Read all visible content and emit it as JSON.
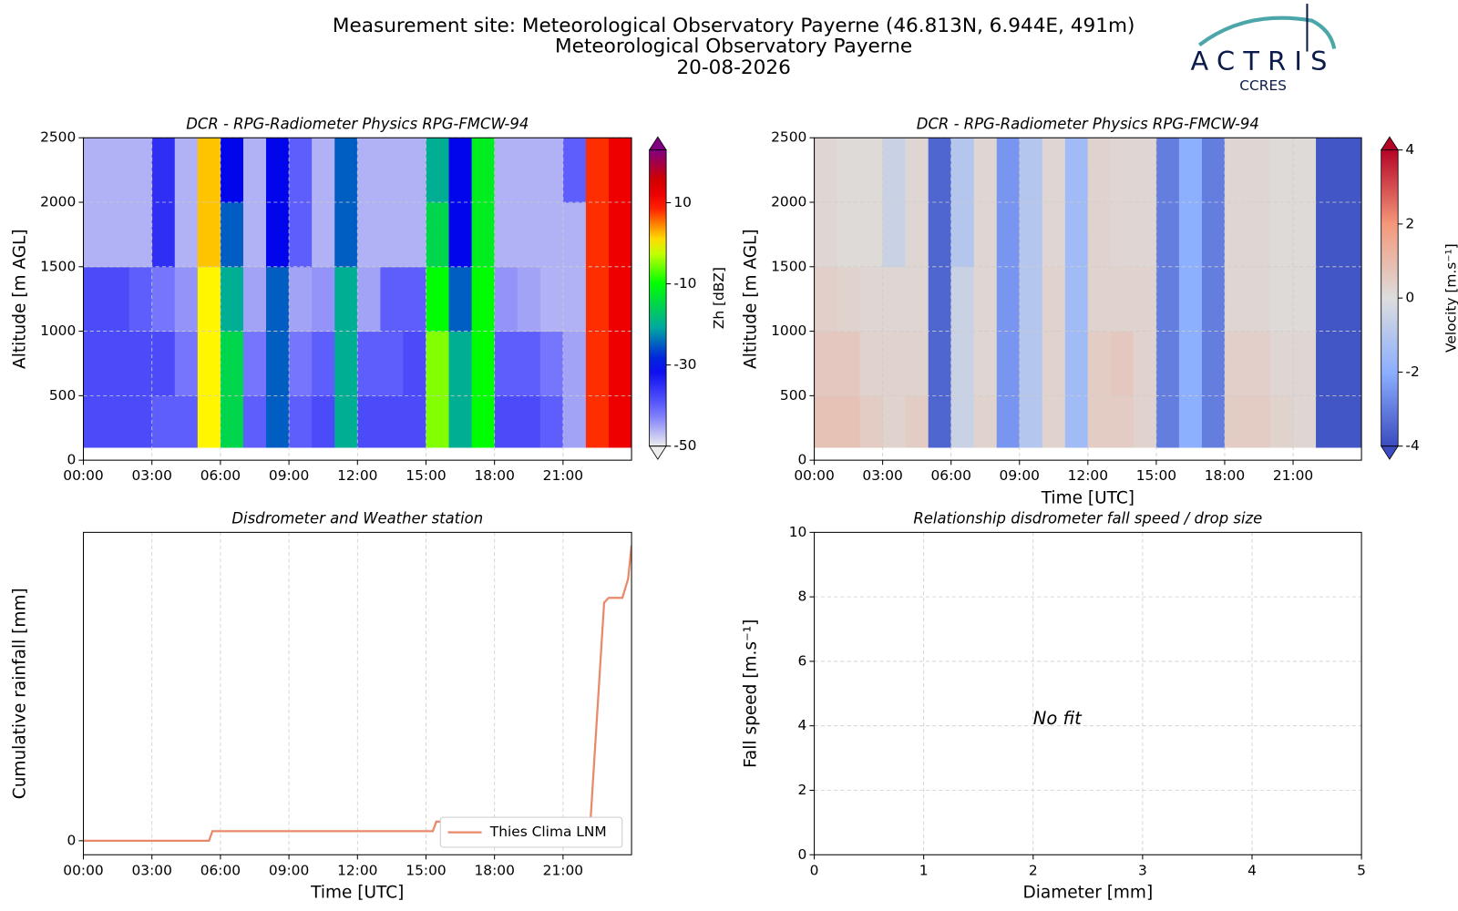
{
  "header": {
    "lines": [
      "Measurement site: Meteorological Observatory Payerne (46.813N, 6.944E, 491m)",
      "Meteorological Observatory Payerne",
      "20-08-2026"
    ]
  },
  "logo": {
    "name": "ACTRIS",
    "sub": "CCRES"
  },
  "chart_data": [
    {
      "type": "heatmap",
      "title": "DCR - RPG-Radiometer Physics RPG-FMCW-94",
      "ylabel": "Altitude [m AGL]",
      "xbins": [
        0,
        1,
        2,
        3,
        4,
        5,
        6,
        7,
        8,
        9,
        10,
        11,
        12,
        13,
        14,
        15,
        16,
        17,
        18,
        19,
        20,
        21,
        22,
        23,
        24
      ],
      "ybins": [
        100,
        500,
        1000,
        1500,
        2000,
        2500
      ],
      "z": [
        [
          -38,
          -38,
          -38,
          -40,
          -40,
          0,
          -15,
          -40,
          -25,
          -40,
          -38,
          -20,
          -38,
          -38,
          -38,
          -5,
          -20,
          -10,
          -38,
          -38,
          -40,
          -45,
          8,
          12
        ],
        [
          -38,
          -38,
          -38,
          -38,
          -42,
          0,
          -15,
          -42,
          -25,
          -42,
          -40,
          -20,
          -40,
          -40,
          -38,
          -5,
          -20,
          -10,
          -40,
          -40,
          -42,
          -45,
          8,
          12
        ],
        [
          -38,
          -38,
          -40,
          -42,
          -44,
          0,
          -20,
          -45,
          -25,
          -45,
          -44,
          -20,
          -45,
          -40,
          -40,
          -10,
          -25,
          -10,
          -44,
          -45,
          -46,
          -46,
          8,
          12
        ],
        [
          -46,
          -46,
          -46,
          -35,
          -46,
          2,
          -25,
          -46,
          -30,
          -40,
          -46,
          -25,
          -46,
          -46,
          -46,
          -15,
          -30,
          -12,
          -46,
          -46,
          -46,
          -46,
          8,
          12
        ],
        [
          -46,
          -46,
          -46,
          -35,
          -46,
          2,
          -30,
          -46,
          -30,
          -40,
          -46,
          -25,
          -46,
          -46,
          -46,
          -20,
          -30,
          -12,
          -46,
          -46,
          -46,
          -40,
          8,
          12
        ]
      ],
      "xlim": [
        0,
        24
      ],
      "xticks": [
        {
          "value": 0,
          "label": "00:00"
        },
        {
          "value": 3,
          "label": "03:00"
        },
        {
          "value": 6,
          "label": "06:00"
        },
        {
          "value": 9,
          "label": "09:00"
        },
        {
          "value": 12,
          "label": "12:00"
        },
        {
          "value": 15,
          "label": "15:00"
        },
        {
          "value": 18,
          "label": "18:00"
        },
        {
          "value": 21,
          "label": "21:00"
        }
      ],
      "ylim": [
        0,
        2500
      ],
      "yticks": [
        0,
        500,
        1000,
        1500,
        2000,
        2500
      ],
      "grid": true,
      "colormap": "reflectivity",
      "colorbar": {
        "label": "Zh [dBZ]",
        "clim": [
          -50,
          23
        ],
        "ticks": [
          -50,
          -30,
          -10,
          10
        ]
      }
    },
    {
      "type": "heatmap",
      "title": "DCR - RPG-Radiometer Physics RPG-FMCW-94",
      "ylabel": "Altitude [m AGL]",
      "xlabel": "Time [UTC]",
      "xbins": [
        0,
        1,
        2,
        3,
        4,
        5,
        6,
        7,
        8,
        9,
        10,
        11,
        12,
        13,
        14,
        15,
        16,
        17,
        18,
        19,
        20,
        21,
        22,
        23,
        24
      ],
      "ybins": [
        100,
        500,
        1000,
        1500,
        2000,
        2500
      ],
      "z": [
        [
          0.8,
          0.8,
          0.5,
          0.3,
          0.5,
          -3.5,
          -0.5,
          0.3,
          -2.5,
          -1,
          0.3,
          -1.5,
          0.5,
          0.5,
          0.3,
          -3,
          -2,
          -3,
          0.5,
          0.5,
          0.3,
          0.2,
          -3.8,
          -3.8
        ],
        [
          0.6,
          0.6,
          0.3,
          0.3,
          0.3,
          -3.5,
          -0.5,
          0.2,
          -2.5,
          -1,
          0.3,
          -1.5,
          0.5,
          0.6,
          0.3,
          -3,
          -2,
          -3,
          0.4,
          0.4,
          0.2,
          0.2,
          -3.8,
          -3.8
        ],
        [
          0.4,
          0.3,
          0.2,
          0.2,
          0.2,
          -3.5,
          -0.5,
          0.2,
          -2.5,
          -1,
          0.3,
          -1.5,
          0.3,
          0.3,
          0.3,
          -3,
          -2,
          -3,
          0.2,
          0.2,
          0.1,
          0.1,
          -3.8,
          -3.8
        ],
        [
          0.2,
          0.1,
          0.1,
          -0.5,
          0.2,
          -3.5,
          -1,
          0.2,
          -2.5,
          -1,
          0.2,
          -1.5,
          0.3,
          0.2,
          0.2,
          -3,
          -2,
          -3,
          0.2,
          0.2,
          0.1,
          0.1,
          -3.8,
          -3.8
        ],
        [
          0.2,
          0.1,
          0.1,
          -0.5,
          0.2,
          -3.5,
          -1,
          0.2,
          -2.5,
          -1,
          0.2,
          -1.5,
          0.3,
          0.2,
          0.2,
          -3,
          -2,
          -3,
          0.2,
          0.2,
          0.1,
          0.1,
          -3.8,
          -3.8
        ]
      ],
      "xlim": [
        0,
        24
      ],
      "xticks": [
        {
          "value": 0,
          "label": "00:00"
        },
        {
          "value": 3,
          "label": "03:00"
        },
        {
          "value": 6,
          "label": "06:00"
        },
        {
          "value": 9,
          "label": "09:00"
        },
        {
          "value": 12,
          "label": "12:00"
        },
        {
          "value": 15,
          "label": "15:00"
        },
        {
          "value": 18,
          "label": "18:00"
        },
        {
          "value": 21,
          "label": "21:00"
        }
      ],
      "ylim": [
        0,
        2500
      ],
      "yticks": [
        0,
        500,
        1000,
        1500,
        2000,
        2500
      ],
      "grid": true,
      "colormap": "velocity",
      "colorbar": {
        "label": "Velocity [m.s⁻¹]",
        "clim": [
          -4,
          4
        ],
        "ticks": [
          -4,
          -2,
          0,
          2,
          4
        ]
      }
    },
    {
      "type": "line",
      "title": "Disdrometer and Weather station",
      "ylabel": "Cumulative rainfall [mm]",
      "xlabel": "Time [UTC]",
      "x": [
        0,
        5.5,
        5.65,
        15.3,
        15.45,
        22.2,
        22.8,
        23.0,
        23.6,
        23.85,
        24
      ],
      "series": [
        {
          "name": "Thies Clima LNM",
          "color": "#e9896a",
          "values": [
            0,
            0,
            0.04,
            0.04,
            0.08,
            0.08,
            1.0,
            1.02,
            1.02,
            1.1,
            1.24
          ]
        }
      ],
      "xlim": [
        0,
        24
      ],
      "xticks": [
        {
          "value": 0,
          "label": "00:00"
        },
        {
          "value": 3,
          "label": "03:00"
        },
        {
          "value": 6,
          "label": "06:00"
        },
        {
          "value": 9,
          "label": "09:00"
        },
        {
          "value": 12,
          "label": "12:00"
        },
        {
          "value": 15,
          "label": "15:00"
        },
        {
          "value": 18,
          "label": "18:00"
        },
        {
          "value": 21,
          "label": "21:00"
        }
      ],
      "ylim": [
        -0.059,
        1.295
      ],
      "yticks": [
        0
      ],
      "grid": true,
      "legend": "lower right"
    },
    {
      "type": "scatter",
      "title": "Relationship disdrometer fall speed / drop size",
      "ylabel": "Fall speed [m.s⁻¹]",
      "xlabel": "Diameter [mm]",
      "annotation": "No fit",
      "xlim": [
        0,
        5
      ],
      "xticks": [
        0,
        1,
        2,
        3,
        4,
        5
      ],
      "ylim": [
        0,
        10
      ],
      "yticks": [
        0,
        2,
        4,
        6,
        8,
        10
      ],
      "grid": true
    }
  ]
}
